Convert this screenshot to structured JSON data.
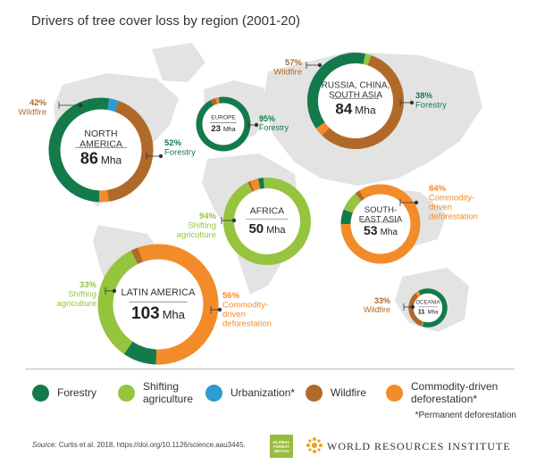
{
  "title": "Drivers of tree cover loss by region (2001-20)",
  "colors": {
    "forestry": "#137a4b",
    "shifting_agriculture": "#96c43e",
    "urbanization": "#2e9bd3",
    "wildfire": "#b1692a",
    "commodity_driven": "#f28c2a",
    "map": "#e3e3e3"
  },
  "chart_data": {
    "type": "pie",
    "variant": "donut-map",
    "title": "Drivers of tree cover loss by region (2001-20)",
    "unit": "Mha",
    "categories": [
      "Forestry",
      "Shifting agriculture",
      "Urbanization*",
      "Wildfire",
      "Commodity-driven deforestation*"
    ],
    "regions": [
      {
        "name": "NORTH AMERICA",
        "total": 86,
        "total_label": "86",
        "shares": {
          "forestry": 52,
          "shifting_agriculture": 0,
          "urbanization": 3,
          "wildfire": 42,
          "commodity_driven": 3
        },
        "callouts": [
          {
            "pct": "52%",
            "label": "Forestry",
            "driver": "forestry"
          },
          {
            "pct": "42%",
            "label": "Wildfire",
            "driver": "wildfire"
          }
        ]
      },
      {
        "name": "EUROPE",
        "total": 23,
        "total_label": "23",
        "shares": {
          "forestry": 95,
          "shifting_agriculture": 0,
          "urbanization": 0,
          "wildfire": 3,
          "commodity_driven": 2
        },
        "callouts": [
          {
            "pct": "95%",
            "label": "Forestry",
            "driver": "forestry"
          }
        ]
      },
      {
        "name": "RUSSIA, CHINA, SOUTH ASIA",
        "total": 84,
        "total_label": "84",
        "shares": {
          "forestry": 38,
          "shifting_agriculture": 2,
          "urbanization": 0,
          "wildfire": 57,
          "commodity_driven": 3
        },
        "callouts": [
          {
            "pct": "57%",
            "label": "Wildfire",
            "driver": "wildfire"
          },
          {
            "pct": "38%",
            "label": "Forestry",
            "driver": "forestry"
          }
        ]
      },
      {
        "name": "AFRICA",
        "total": 50,
        "total_label": "50",
        "shares": {
          "forestry": 2,
          "shifting_agriculture": 94,
          "urbanization": 0,
          "wildfire": 1,
          "commodity_driven": 3
        },
        "callouts": [
          {
            "pct": "94%",
            "label": "Shifting agriculture",
            "driver": "shifting_agriculture"
          }
        ]
      },
      {
        "name": "SOUTH-EAST ASIA",
        "total": 53,
        "total_label": "53",
        "shares": {
          "forestry": 6,
          "shifting_agriculture": 8,
          "urbanization": 0,
          "wildfire": 2,
          "commodity_driven": 84
        },
        "callouts": [
          {
            "pct": "84%",
            "label": "Commodity-driven deforestation",
            "driver": "commodity_driven"
          }
        ]
      },
      {
        "name": "LATIN AMERICA",
        "total": 103,
        "total_label": "103",
        "shares": {
          "forestry": 9,
          "shifting_agriculture": 33,
          "urbanization": 0,
          "wildfire": 2,
          "commodity_driven": 56
        },
        "callouts": [
          {
            "pct": "33%",
            "label": "Shifting agriculture",
            "driver": "shifting_agriculture"
          },
          {
            "pct": "56%",
            "label": "Commodity-driven deforestation",
            "driver": "commodity_driven"
          }
        ]
      },
      {
        "name": "OCEANIA",
        "total": 11,
        "total_label": "11",
        "shares": {
          "forestry": 63,
          "shifting_agriculture": 1,
          "urbanization": 0,
          "wildfire": 33,
          "commodity_driven": 3
        },
        "callouts": [
          {
            "pct": "33%",
            "label": "Wildfire",
            "driver": "wildfire"
          }
        ]
      }
    ]
  },
  "legend": [
    {
      "key": "forestry",
      "label": "Forestry"
    },
    {
      "key": "shifting_agriculture",
      "label": "Shifting agriculture"
    },
    {
      "key": "urbanization",
      "label": "Urbanization*"
    },
    {
      "key": "wildfire",
      "label": "Wildfire"
    },
    {
      "key": "commodity_driven",
      "label": "Commodity-driven deforestation*"
    }
  ],
  "permanent_note": "*Permanent deforestation",
  "source": {
    "prefix": "Source:",
    "text": " Curtis et al. 2018, https://doi.org/10.1126/science.aau3445."
  },
  "logos": {
    "gfw": "GLOBAL FOREST WATCH",
    "wri": "WORLD RESOURCES INSTITUTE"
  }
}
